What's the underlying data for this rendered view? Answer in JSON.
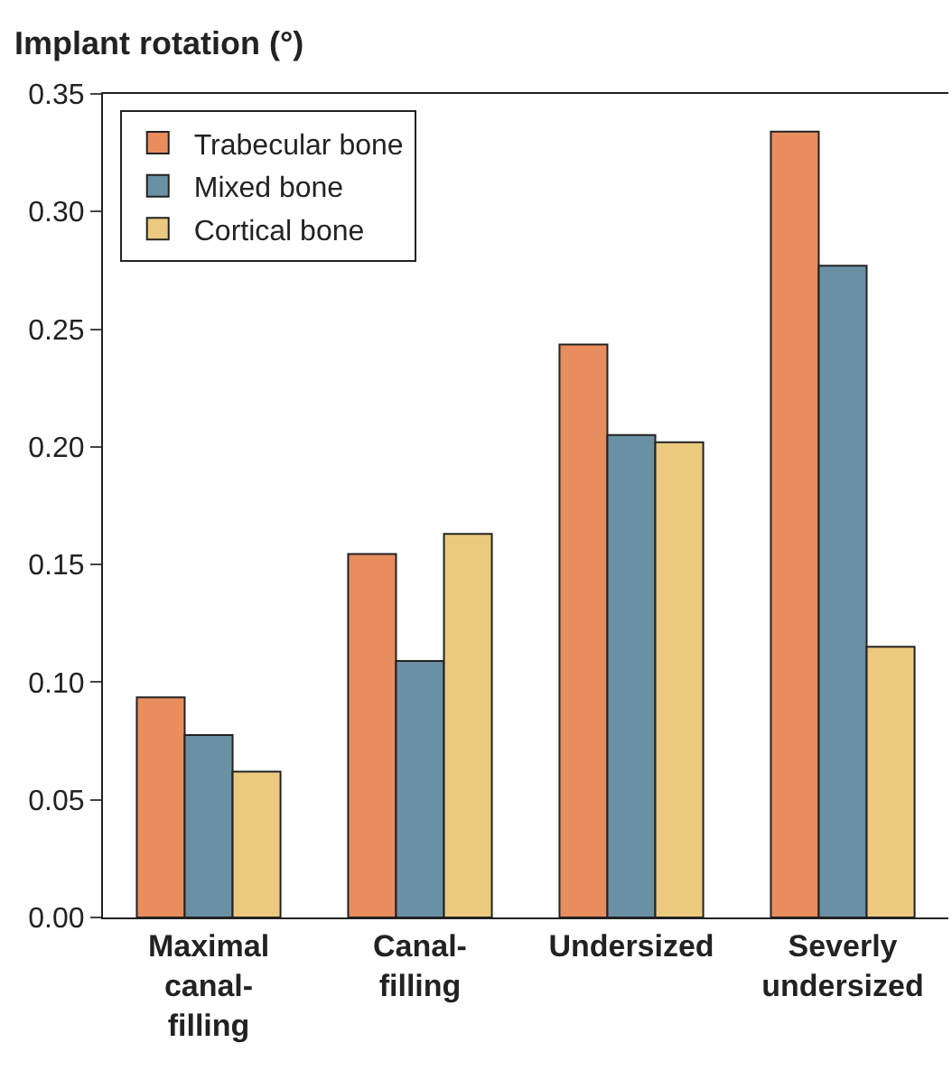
{
  "chart_data": {
    "type": "bar",
    "ylabel": "Implant rotation (°)",
    "categories": [
      "Maximal\ncanal-\nfilling",
      "Canal-\nfilling",
      "Undersized",
      "Severly\nundersized"
    ],
    "series": [
      {
        "name": "Trabecular bone",
        "color": "#e88d5e",
        "values": [
          0.0935,
          0.1545,
          0.2435,
          0.334
        ]
      },
      {
        "name": "Mixed bone",
        "color": "#6a90a3",
        "values": [
          0.0775,
          0.109,
          0.205,
          0.277
        ]
      },
      {
        "name": "Cortical bone",
        "color": "#ebca7f",
        "values": [
          0.062,
          0.163,
          0.202,
          0.115
        ]
      }
    ],
    "ylim": [
      0,
      0.35
    ],
    "yticks": [
      {
        "value": 0,
        "label": "0.00"
      },
      {
        "value": 0.05,
        "label": "0.05"
      },
      {
        "value": 0.1,
        "label": "0.10"
      },
      {
        "value": 0.15,
        "label": "0.15"
      },
      {
        "value": 0.2,
        "label": "0.20"
      },
      {
        "value": 0.25,
        "label": "0.25"
      },
      {
        "value": 0.3,
        "label": "0.30"
      },
      {
        "value": 0.35,
        "label": "0.35"
      }
    ],
    "grid": false,
    "legend": "top left"
  }
}
